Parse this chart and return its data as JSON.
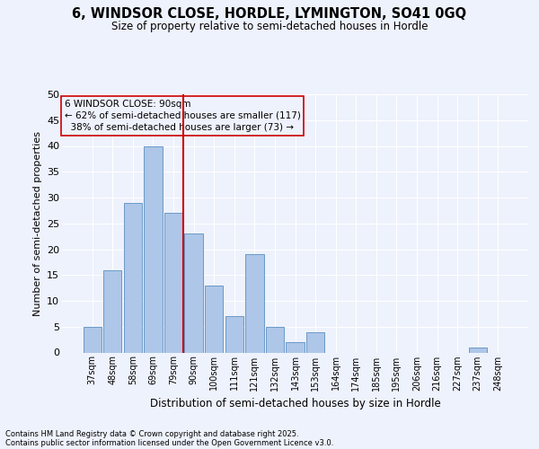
{
  "title_line1": "6, WINDSOR CLOSE, HORDLE, LYMINGTON, SO41 0GQ",
  "title_line2": "Size of property relative to semi-detached houses in Hordle",
  "xlabel": "Distribution of semi-detached houses by size in Hordle",
  "ylabel": "Number of semi-detached properties",
  "footer_line1": "Contains HM Land Registry data © Crown copyright and database right 2025.",
  "footer_line2": "Contains public sector information licensed under the Open Government Licence v3.0.",
  "bar_labels": [
    "37sqm",
    "48sqm",
    "58sqm",
    "69sqm",
    "79sqm",
    "90sqm",
    "100sqm",
    "111sqm",
    "121sqm",
    "132sqm",
    "143sqm",
    "153sqm",
    "164sqm",
    "174sqm",
    "185sqm",
    "195sqm",
    "206sqm",
    "216sqm",
    "227sqm",
    "237sqm",
    "248sqm"
  ],
  "bar_values": [
    5,
    16,
    29,
    40,
    27,
    23,
    13,
    7,
    19,
    5,
    2,
    4,
    0,
    0,
    0,
    0,
    0,
    0,
    0,
    1,
    0
  ],
  "property_label": "6 WINDSOR CLOSE: 90sqm",
  "pct_smaller": 62,
  "pct_larger": 38,
  "count_smaller": 117,
  "count_larger": 73,
  "bar_color": "#aec6e8",
  "bar_edge_color": "#5a8fc0",
  "vline_color": "#cc0000",
  "annotation_box_edge": "#cc0000",
  "background_color": "#eef2fc",
  "grid_color": "#ffffff",
  "ylim": [
    0,
    50
  ],
  "yticks": [
    0,
    5,
    10,
    15,
    20,
    25,
    30,
    35,
    40,
    45,
    50
  ],
  "vline_index": 4.5
}
